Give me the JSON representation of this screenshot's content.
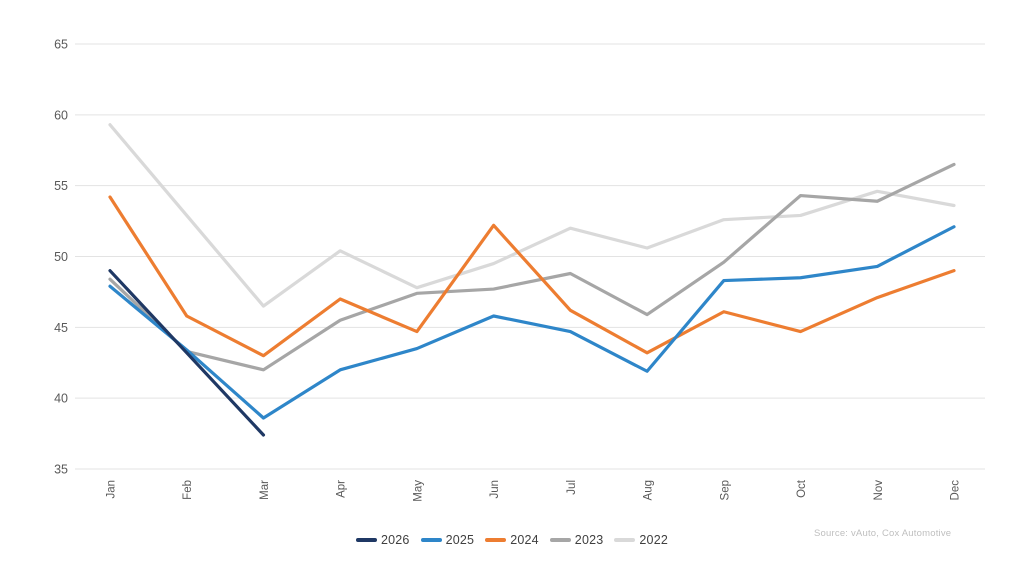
{
  "chart_data": {
    "type": "line",
    "title": "",
    "xlabel": "",
    "ylabel": "",
    "ylim": [
      35,
      65
    ],
    "ytick_step": 5,
    "yticks": [
      65,
      60,
      55,
      50,
      45,
      40,
      35
    ],
    "grid": "horizontal",
    "legend_position": "bottom-center",
    "x_label_rotation": -90,
    "categories": [
      "Jan",
      "Feb",
      "Mar",
      "Apr",
      "May",
      "Jun",
      "Jul",
      "Aug",
      "Sep",
      "Oct",
      "Nov",
      "Dec"
    ],
    "series": [
      {
        "name": "2026",
        "color": "#1F3864",
        "values": [
          49.0,
          43.2,
          37.4,
          null,
          null,
          null,
          null,
          null,
          null,
          null,
          null,
          null
        ]
      },
      {
        "name": "2025",
        "color": "#2E86C9",
        "values": [
          47.9,
          43.4,
          38.6,
          42.0,
          43.5,
          45.8,
          44.7,
          41.9,
          48.3,
          48.5,
          49.3,
          52.1
        ]
      },
      {
        "name": "2024",
        "color": "#ED7D31",
        "values": [
          54.2,
          45.8,
          43.0,
          47.0,
          44.7,
          52.2,
          46.2,
          43.2,
          46.1,
          44.7,
          47.1,
          49.0
        ]
      },
      {
        "name": "2023",
        "color": "#A6A6A6",
        "values": [
          48.4,
          43.3,
          42.0,
          45.5,
          47.4,
          47.7,
          48.8,
          45.9,
          49.6,
          54.3,
          53.9,
          56.5
        ]
      },
      {
        "name": "2022",
        "color": "#D9D9D9",
        "values": [
          59.3,
          52.9,
          46.5,
          50.4,
          47.8,
          49.5,
          52.0,
          50.6,
          52.6,
          52.9,
          54.6,
          53.6
        ]
      }
    ]
  },
  "source_text": "Source: vAuto, Cox Automotive",
  "colors": {
    "background": "#FFFFFF",
    "gridline": "#E3E3E3",
    "axis_label": "#595959",
    "legend_text": "#404040",
    "source_text": "#BFBFBF"
  }
}
